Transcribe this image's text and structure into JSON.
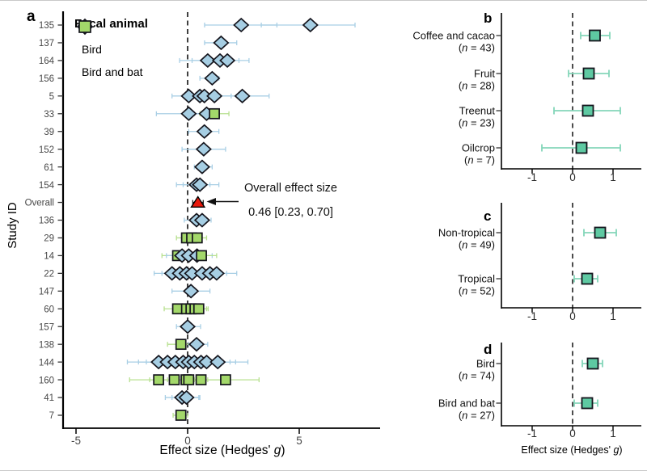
{
  "figure": {
    "panel_labels": {
      "a": "a",
      "b": "b",
      "c": "c",
      "d": "d"
    }
  },
  "colors": {
    "bird_fill": "#a6cee3",
    "bird_ci": "#a9cfe5",
    "bat_fill": "#a3d86a",
    "bat_ci": "#b7e08f",
    "teal_fill": "#5ec9a2",
    "teal_ci": "#84d6ba",
    "overall_fill": "#e8190c",
    "marker_stroke": "#15151d",
    "axis": "#000000",
    "tick_text": "#474747",
    "label_text": "#111111"
  },
  "chart_data": [
    {
      "type": "forest",
      "panel": "a",
      "xlabel": {
        "prefix": "Effect size (Hedges' ",
        "italic": "g",
        "suffix": ")"
      },
      "ylabel": "Study ID",
      "xticks": [
        -5,
        0,
        5
      ],
      "xlim": [
        -5.6,
        8.5
      ],
      "legend": {
        "title": "Focal animal",
        "items": [
          {
            "label": "Bird",
            "marker": "diamond"
          },
          {
            "label": "Bird and bat",
            "marker": "square"
          }
        ]
      },
      "annotation": {
        "line1": "Overall effect size",
        "line2": "0.46 [0.23, 0.70]"
      },
      "rows": [
        {
          "id": "135",
          "points": [
            {
              "x": 2.4,
              "lo": 0.76,
              "hi": 4.0,
              "m": "bird"
            },
            {
              "x": 5.5,
              "lo": 3.3,
              "hi": 7.5,
              "m": "bird"
            }
          ]
        },
        {
          "id": "137",
          "points": [
            {
              "x": 1.5,
              "lo": 0.76,
              "hi": 2.2,
              "m": "bird"
            }
          ]
        },
        {
          "id": "164",
          "points": [
            {
              "x": 0.9,
              "lo": -0.36,
              "hi": 1.6,
              "m": "bird"
            },
            {
              "x": 1.45,
              "lo": 0.2,
              "hi": 2.3,
              "m": "bird"
            },
            {
              "x": 1.78,
              "lo": 0.9,
              "hi": 2.75,
              "m": "bird"
            }
          ]
        },
        {
          "id": "156",
          "points": [
            {
              "x": 1.1,
              "lo": 0.55,
              "hi": 1.4,
              "m": "bird"
            }
          ]
        },
        {
          "id": "5",
          "points": [
            {
              "x": 0.05,
              "lo": -0.7,
              "hi": 0.8,
              "m": "bird"
            },
            {
              "x": 0.55,
              "lo": -0.15,
              "hi": 1.25,
              "m": "bird"
            },
            {
              "x": 0.75,
              "lo": 0.05,
              "hi": 1.45,
              "m": "bird"
            },
            {
              "x": 1.2,
              "lo": 0.45,
              "hi": 1.95,
              "m": "bird"
            },
            {
              "x": 2.45,
              "lo": 1.3,
              "hi": 3.65,
              "m": "bird"
            }
          ]
        },
        {
          "id": "33",
          "points": [
            {
              "x": 0.05,
              "lo": -1.4,
              "hi": 0.6,
              "m": "bird"
            },
            {
              "x": 0.85,
              "lo": 0.3,
              "hi": 1.4,
              "m": "bird"
            },
            {
              "x": 1.2,
              "lo": 0.55,
              "hi": 1.85,
              "m": "bat"
            }
          ]
        },
        {
          "id": "39",
          "points": [
            {
              "x": 0.75,
              "lo": 0.05,
              "hi": 1.4,
              "m": "bird"
            }
          ]
        },
        {
          "id": "152",
          "points": [
            {
              "x": 0.72,
              "lo": -0.25,
              "hi": 1.7,
              "m": "bird"
            }
          ]
        },
        {
          "id": "61",
          "points": [
            {
              "x": 0.65,
              "lo": 0.3,
              "hi": 1.1,
              "m": "bird"
            }
          ]
        },
        {
          "id": "154",
          "points": [
            {
              "x": 0.4,
              "lo": -0.5,
              "hi": 1.0,
              "m": "bird"
            },
            {
              "x": 0.55,
              "lo": -0.2,
              "hi": 1.4,
              "m": "bird"
            }
          ]
        },
        {
          "id": "Overall",
          "points": [
            {
              "x": 0.46,
              "lo": 0.23,
              "hi": 0.7,
              "m": "overall"
            }
          ]
        },
        {
          "id": "136",
          "points": [
            {
              "x": 0.4,
              "lo": -0.15,
              "hi": 0.8,
              "m": "bird"
            },
            {
              "x": 0.65,
              "lo": 0.2,
              "hi": 1.05,
              "m": "bird"
            }
          ]
        },
        {
          "id": "29",
          "points": [
            {
              "x": -0.05,
              "lo": -0.5,
              "hi": 0.35,
              "m": "bat"
            },
            {
              "x": 0.18,
              "lo": -0.25,
              "hi": 0.6,
              "m": "bat"
            },
            {
              "x": 0.43,
              "lo": 0.0,
              "hi": 0.85,
              "m": "bat"
            }
          ]
        },
        {
          "id": "14",
          "points": [
            {
              "x": -0.45,
              "lo": -1.15,
              "hi": 0.25,
              "m": "bat"
            },
            {
              "x": -0.25,
              "lo": -0.95,
              "hi": 0.45,
              "m": "bird"
            },
            {
              "x": 0.05,
              "lo": -0.65,
              "hi": 0.75,
              "m": "bird"
            },
            {
              "x": 0.42,
              "lo": -0.25,
              "hi": 1.1,
              "m": "bird"
            },
            {
              "x": 0.62,
              "lo": -0.05,
              "hi": 1.3,
              "m": "bat"
            }
          ]
        },
        {
          "id": "22",
          "points": [
            {
              "x": -0.7,
              "lo": -1.5,
              "hi": 0.1,
              "m": "bird"
            },
            {
              "x": -0.35,
              "lo": -1.15,
              "hi": 0.45,
              "m": "bird"
            },
            {
              "x": -0.05,
              "lo": -0.85,
              "hi": 0.75,
              "m": "bird"
            },
            {
              "x": 0.2,
              "lo": -0.6,
              "hi": 1.0,
              "m": "bird"
            },
            {
              "x": 0.65,
              "lo": -0.1,
              "hi": 1.4,
              "m": "bird"
            },
            {
              "x": 1.0,
              "lo": 0.25,
              "hi": 1.75,
              "m": "bird"
            },
            {
              "x": 1.3,
              "lo": 0.5,
              "hi": 2.2,
              "m": "bird"
            }
          ]
        },
        {
          "id": "147",
          "points": [
            {
              "x": 0.15,
              "lo": -0.7,
              "hi": 1.0,
              "m": "bird"
            }
          ]
        },
        {
          "id": "60",
          "points": [
            {
              "x": -0.45,
              "lo": -1.05,
              "hi": 0.15,
              "m": "bat"
            },
            {
              "x": -0.05,
              "lo": -0.62,
              "hi": 0.5,
              "m": "bat"
            },
            {
              "x": 0.15,
              "lo": -0.4,
              "hi": 0.68,
              "m": "bat"
            },
            {
              "x": 0.33,
              "lo": -0.2,
              "hi": 0.85,
              "m": "bat"
            },
            {
              "x": 0.5,
              "lo": 0.0,
              "hi": 0.92,
              "m": "bat"
            }
          ]
        },
        {
          "id": "157",
          "points": [
            {
              "x": 0.0,
              "lo": -0.5,
              "hi": 0.58,
              "m": "bird"
            }
          ]
        },
        {
          "id": "138",
          "points": [
            {
              "x": -0.3,
              "lo": -0.9,
              "hi": 0.25,
              "m": "bat"
            },
            {
              "x": 0.4,
              "lo": 0.05,
              "hi": 0.9,
              "m": "bird"
            }
          ]
        },
        {
          "id": "144",
          "points": [
            {
              "x": -1.3,
              "lo": -2.7,
              "hi": 0.1,
              "m": "bird"
            },
            {
              "x": -0.9,
              "lo": -2.2,
              "hi": 0.4,
              "m": "bird"
            },
            {
              "x": -0.55,
              "lo": -1.85,
              "hi": 0.75,
              "m": "bird"
            },
            {
              "x": -0.2,
              "lo": -1.5,
              "hi": 1.1,
              "m": "bird"
            },
            {
              "x": 0.05,
              "lo": -1.25,
              "hi": 1.35,
              "m": "bird"
            },
            {
              "x": 0.3,
              "lo": -1.0,
              "hi": 1.6,
              "m": "bird"
            },
            {
              "x": 0.6,
              "lo": -0.7,
              "hi": 1.9,
              "m": "bird"
            },
            {
              "x": 0.85,
              "lo": -0.45,
              "hi": 2.15,
              "m": "bird"
            },
            {
              "x": 1.35,
              "lo": 0.05,
              "hi": 2.7,
              "m": "bird"
            }
          ]
        },
        {
          "id": "160",
          "points": [
            {
              "x": -1.3,
              "lo": -2.6,
              "hi": 0.0,
              "m": "bat"
            },
            {
              "x": -0.6,
              "lo": -1.7,
              "hi": 0.5,
              "m": "bat"
            },
            {
              "x": -0.07,
              "lo": -0.9,
              "hi": 0.75,
              "m": "bat"
            },
            {
              "x": 0.05,
              "lo": -0.8,
              "hi": 0.9,
              "m": "bat"
            },
            {
              "x": 0.6,
              "lo": -0.4,
              "hi": 1.6,
              "m": "bat"
            },
            {
              "x": 1.7,
              "lo": 0.3,
              "hi": 3.2,
              "m": "bat"
            }
          ]
        },
        {
          "id": "41",
          "points": [
            {
              "x": -0.25,
              "lo": -1.0,
              "hi": 0.5,
              "m": "bird"
            },
            {
              "x": -0.05,
              "lo": -0.7,
              "hi": 0.55,
              "m": "bird"
            }
          ]
        },
        {
          "id": "7",
          "points": [
            {
              "x": -0.3,
              "lo": -0.65,
              "hi": 0.0,
              "m": "bat"
            }
          ]
        }
      ]
    },
    {
      "type": "forest",
      "panel": "b",
      "xticks": [
        -1,
        0,
        1
      ],
      "rows": [
        {
          "label": "Coffee and cacao",
          "n": "43",
          "x": 0.55,
          "lo": 0.2,
          "hi": 0.92
        },
        {
          "label": "Fruit",
          "n": "28",
          "x": 0.4,
          "lo": -0.1,
          "hi": 0.9
        },
        {
          "label": "Treenut",
          "n": "23",
          "x": 0.38,
          "lo": -0.46,
          "hi": 1.18
        },
        {
          "label": "Oilcrop",
          "n": "7",
          "x": 0.22,
          "lo": -0.76,
          "hi": 1.18
        }
      ]
    },
    {
      "type": "forest",
      "panel": "c",
      "xticks": [
        -1,
        0,
        1
      ],
      "rows": [
        {
          "label": "Non-tropical",
          "n": "49",
          "x": 0.68,
          "lo": 0.28,
          "hi": 1.08
        },
        {
          "label": "Tropical",
          "n": "52",
          "x": 0.36,
          "lo": 0.04,
          "hi": 0.62
        }
      ]
    },
    {
      "type": "forest",
      "panel": "d",
      "xlabel": {
        "prefix": "Effect size (Hedges' ",
        "italic": "g",
        "suffix": ")"
      },
      "xticks": [
        -1,
        0,
        1
      ],
      "rows": [
        {
          "label": "Bird",
          "n": "74",
          "x": 0.5,
          "lo": 0.24,
          "hi": 0.74
        },
        {
          "label": "Bird and bat",
          "n": "27",
          "x": 0.36,
          "lo": 0.04,
          "hi": 0.62
        }
      ]
    }
  ]
}
